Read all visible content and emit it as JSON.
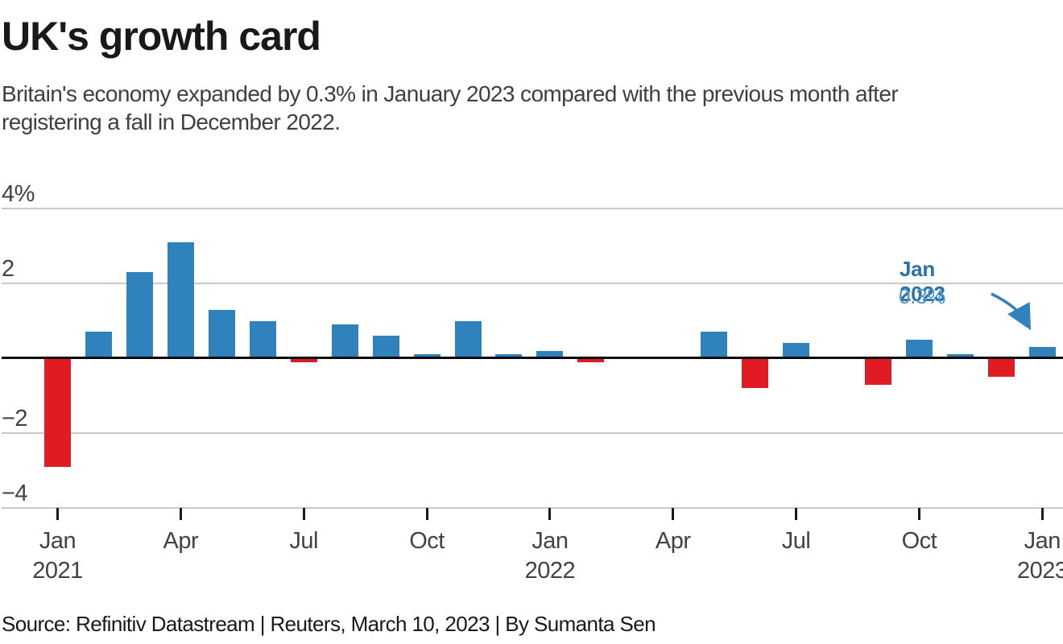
{
  "header": {
    "title": "UK's growth card",
    "subtitle": "Britain's economy expanded by 0.3% in January 2023 compared with the previous month after registering a fall in December 2022."
  },
  "annotation": {
    "label": "Jan 2023",
    "value": "0.3%"
  },
  "footer": {
    "source": "Source: Refinitiv Datastream | Reuters, March 10, 2023 | By Sumanta Sen"
  },
  "colors": {
    "positive_bar": "#3082bc",
    "negative_bar": "#e01b24",
    "annotation_label": "#2a72a8",
    "annotation_value": "#4f94c8",
    "arrow": "#3082bc",
    "grid": "#c9c9c9",
    "zero_line": "#0a0a0a",
    "axis_text": "#424242"
  },
  "chart_data": {
    "type": "bar",
    "title": "UK's growth card",
    "xlabel": "",
    "ylabel": "%",
    "ylim": [
      -4,
      4
    ],
    "grid": true,
    "x": [
      "Jan 2021",
      "Feb 2021",
      "Mar 2021",
      "Apr 2021",
      "May 2021",
      "Jun 2021",
      "Jul 2021",
      "Aug 2021",
      "Sep 2021",
      "Oct 2021",
      "Nov 2021",
      "Dec 2021",
      "Jan 2022",
      "Feb 2022",
      "Mar 2022",
      "Apr 2022",
      "May 2022",
      "Jun 2022",
      "Jul 2022",
      "Aug 2022",
      "Sep 2022",
      "Oct 2022",
      "Nov 2022",
      "Dec 2022",
      "Jan 2023"
    ],
    "values": [
      -2.9,
      0.7,
      2.3,
      3.1,
      1.3,
      1.0,
      -0.1,
      0.9,
      0.6,
      0.1,
      1.0,
      0.1,
      0.2,
      -0.1,
      0.0,
      0.0,
      0.7,
      -0.8,
      0.4,
      0.0,
      -0.7,
      0.5,
      0.1,
      -0.5,
      0.3
    ],
    "color_rule": "positive bars blue, negative bars red",
    "yticks": [
      {
        "label": "4%",
        "value": 4
      },
      {
        "label": "2",
        "value": 2
      },
      {
        "label": "−2",
        "value": -2
      },
      {
        "label": "−4",
        "value": -4
      }
    ],
    "xticks": [
      {
        "label": "Jan",
        "year": "2021",
        "month_index": 0
      },
      {
        "label": "Apr",
        "year": "",
        "month_index": 3
      },
      {
        "label": "Jul",
        "year": "",
        "month_index": 6
      },
      {
        "label": "Oct",
        "year": "",
        "month_index": 9
      },
      {
        "label": "Jan",
        "year": "2022",
        "month_index": 12
      },
      {
        "label": "Apr",
        "year": "",
        "month_index": 15
      },
      {
        "label": "Jul",
        "year": "",
        "month_index": 18
      },
      {
        "label": "Oct",
        "year": "",
        "month_index": 21
      },
      {
        "label": "Jan",
        "year": "2023",
        "month_index": 24
      }
    ],
    "annotation": {
      "label": "Jan 2023",
      "value": "0.3%",
      "points_to": "Jan 2023"
    }
  }
}
